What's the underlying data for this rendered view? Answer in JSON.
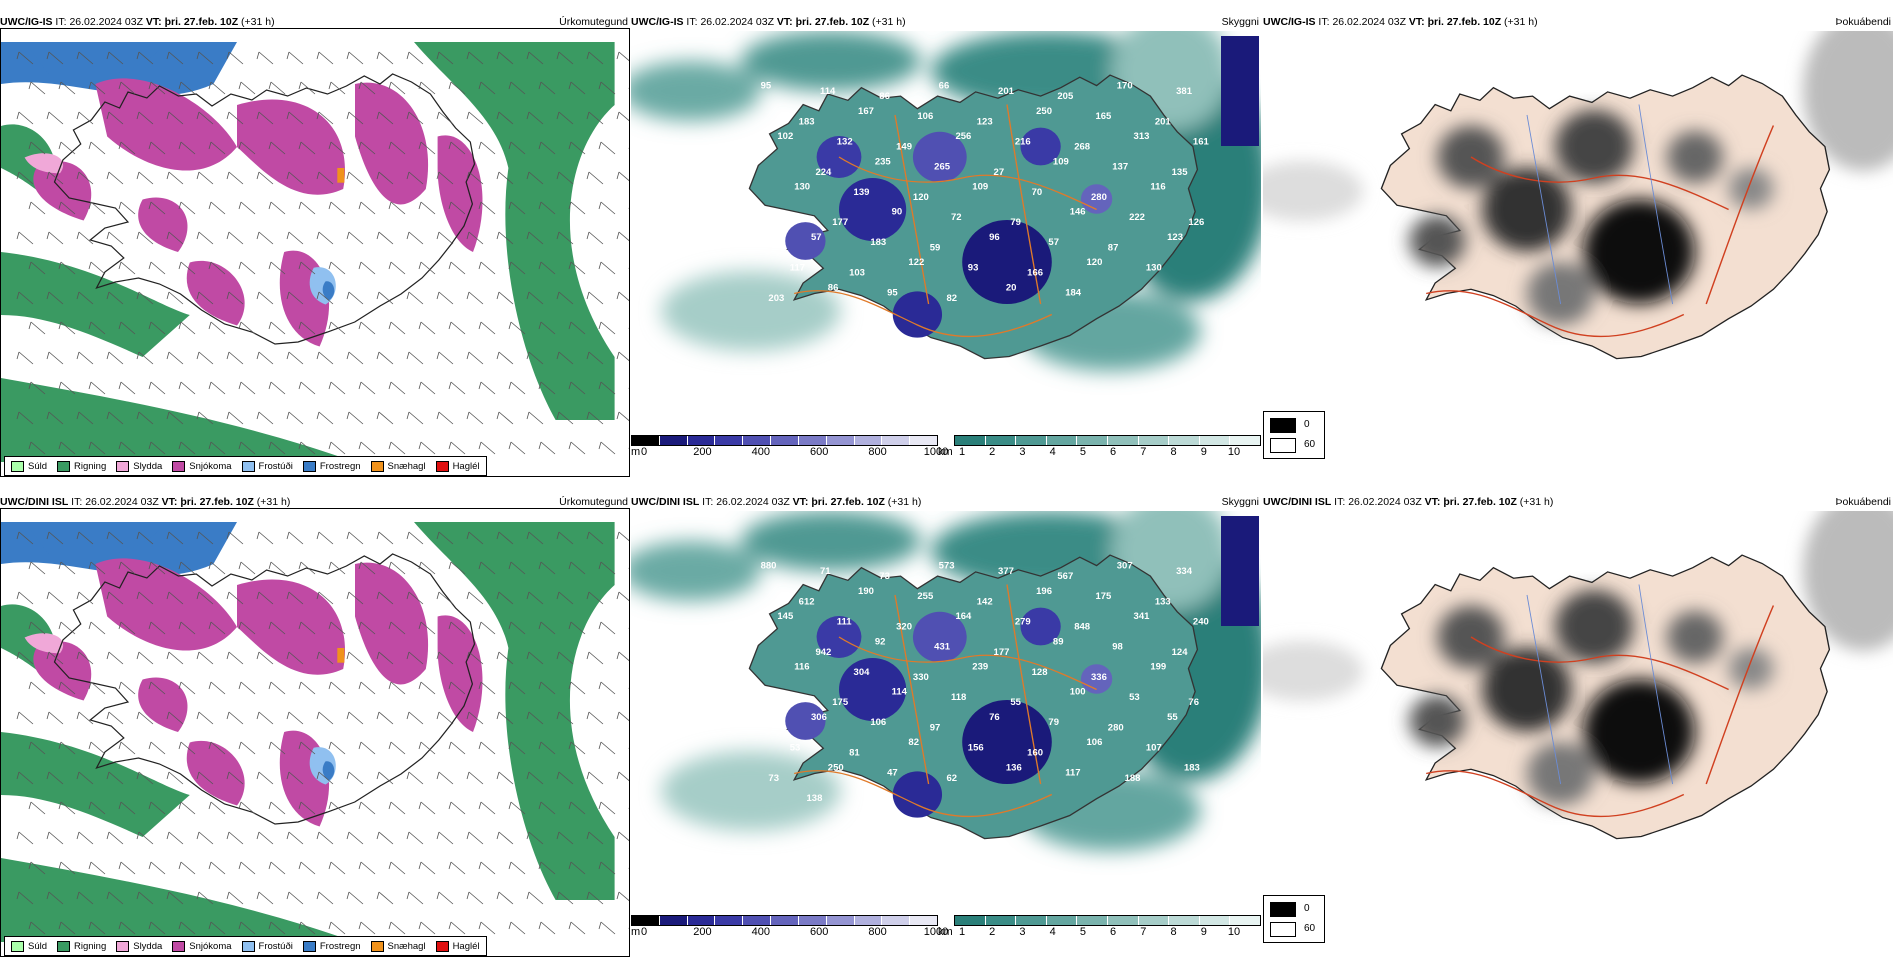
{
  "rows": [
    {
      "model": "UWC/IG-IS",
      "it_label": "IT:",
      "it_value": "26.02.2024 03Z",
      "vt_label": "VT:",
      "vt_value": "þri. 27.feb. 10Z",
      "lead": "(+31 h)",
      "cloud_labels": [
        "95",
        "114",
        "86",
        "66",
        "201",
        "205",
        "170",
        "381",
        "183",
        "167",
        "106",
        "123",
        "250",
        "165",
        "201",
        "102",
        "132",
        "149",
        "256",
        "216",
        "268",
        "313",
        "161",
        "224",
        "235",
        "265",
        "27",
        "109",
        "137",
        "135",
        "130",
        "139",
        "120",
        "109",
        "70",
        "280",
        "116",
        "347",
        "177",
        "90",
        "72",
        "79",
        "146",
        "222",
        "126",
        "57",
        "183",
        "59",
        "96",
        "57",
        "87",
        "123",
        "117",
        "103",
        "122",
        "93",
        "166",
        "120",
        "130",
        "203",
        "86",
        "95",
        "82",
        "20",
        "184"
      ]
    },
    {
      "model": "UWC/DINI ISL",
      "it_label": "IT:",
      "it_value": "26.02.2024 03Z",
      "vt_label": "VT:",
      "vt_value": "þri. 27.feb. 10Z",
      "lead": "(+31 h)",
      "cloud_labels": [
        "880",
        "71",
        "73",
        "573",
        "377",
        "567",
        "307",
        "334",
        "612",
        "190",
        "255",
        "142",
        "196",
        "175",
        "133",
        "145",
        "111",
        "320",
        "164",
        "279",
        "848",
        "341",
        "240",
        "942",
        "92",
        "431",
        "177",
        "89",
        "98",
        "124",
        "116",
        "304",
        "330",
        "239",
        "128",
        "336",
        "199",
        "185",
        "175",
        "114",
        "118",
        "55",
        "100",
        "53",
        "76",
        "306",
        "106",
        "97",
        "76",
        "79",
        "280",
        "55",
        "53",
        "81",
        "82",
        "156",
        "160",
        "106",
        "107",
        "73",
        "250",
        "47",
        "62",
        "136",
        "117",
        "188",
        "183",
        "138",
        "110"
      ]
    }
  ],
  "panels": {
    "precip": {
      "title": "Úrkomutegund",
      "legend": [
        {
          "label": "Súld",
          "color": "#aaffaa"
        },
        {
          "label": "Rigning",
          "color": "#3a9a62"
        },
        {
          "label": "Slydda",
          "color": "#f0a8d8"
        },
        {
          "label": "Snjókoma",
          "color": "#c04aa4"
        },
        {
          "label": "Frostúði",
          "color": "#90c0f0"
        },
        {
          "label": "Frostregn",
          "color": "#3a7cc6"
        },
        {
          "label": "Snæhagl",
          "color": "#f0921c"
        },
        {
          "label": "Haglél",
          "color": "#e01010"
        }
      ]
    },
    "cloud": {
      "title": "Skyggni",
      "height_unit": "m",
      "height_ticks": [
        "0",
        "200",
        "400",
        "600",
        "800",
        "1000"
      ],
      "height_colors": [
        "#000000",
        "#1a1a7a",
        "#2a2a96",
        "#3a3aa6",
        "#5050b2",
        "#6464bc",
        "#7a7ac6",
        "#9494d2",
        "#b0b0de",
        "#cfcfea",
        "#e8e8f4"
      ],
      "vis_unit": "km",
      "vis_ticks": [
        "1",
        "2",
        "3",
        "4",
        "5",
        "6",
        "7",
        "8",
        "9",
        "10"
      ],
      "vis_colors": [
        "#2a7f79",
        "#3a8c86",
        "#4f9993",
        "#64a6a0",
        "#7ab3ad",
        "#90c0ba",
        "#a6cdc8",
        "#bcdad6",
        "#d2e7e4",
        "#e8f4f2"
      ]
    },
    "fog": {
      "title": "Þokuábendi",
      "legend": [
        {
          "label": "0",
          "color": "#000000"
        },
        {
          "label": "60",
          "color": "#ffffff"
        }
      ]
    }
  }
}
